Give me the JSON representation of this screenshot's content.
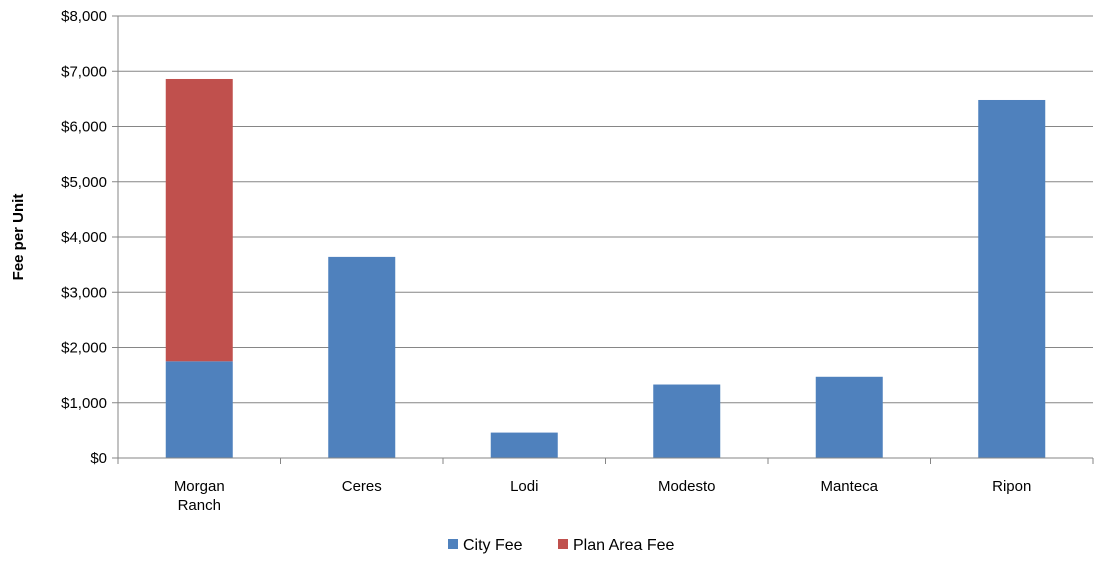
{
  "chart_data": {
    "type": "bar",
    "stacked": true,
    "categories": [
      [
        "Morgan",
        "Ranch"
      ],
      [
        "Ceres"
      ],
      [
        "Lodi"
      ],
      [
        "Modesto"
      ],
      [
        "Manteca"
      ],
      [
        "Ripon"
      ]
    ],
    "series": [
      {
        "name": "City Fee",
        "color": "#4F81BD",
        "values": [
          1750,
          3640,
          460,
          1330,
          1470,
          6480
        ]
      },
      {
        "name": "Plan Area Fee",
        "color": "#C0504D",
        "values": [
          5110,
          0,
          0,
          0,
          0,
          0
        ]
      }
    ],
    "ylabel": "Fee per Unit",
    "ylim": [
      0,
      8000
    ],
    "yticks": [
      0,
      1000,
      2000,
      3000,
      4000,
      5000,
      6000,
      7000,
      8000
    ],
    "ytick_labels": [
      "$0",
      "$1,000",
      "$2,000",
      "$3,000",
      "$4,000",
      "$5,000",
      "$6,000",
      "$7,000",
      "$8,000"
    ],
    "grid": true,
    "legend_position": "bottom"
  }
}
